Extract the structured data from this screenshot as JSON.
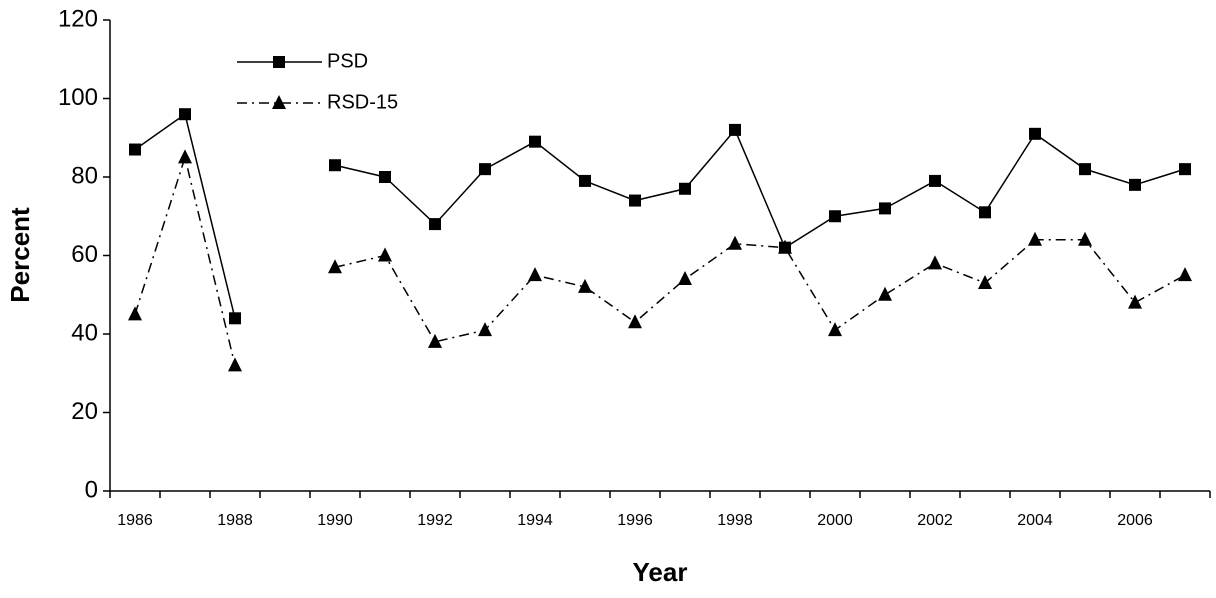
{
  "chart_data": {
    "type": "line",
    "x_label": "Year",
    "y_label": "Percent",
    "categories": [
      "1986",
      null,
      "1988",
      null,
      "1990",
      null,
      "1992",
      null,
      "1994",
      null,
      "1996",
      null,
      "1998",
      null,
      "2000",
      null,
      "2002",
      null,
      "2004",
      null,
      "2006",
      null
    ],
    "series": [
      {
        "name": "PSD",
        "color": "#000000",
        "dash": "solid",
        "marker": "square",
        "values": [
          87,
          96,
          44,
          null,
          83,
          80,
          68,
          82,
          89,
          79,
          74,
          77,
          92,
          62,
          70,
          72,
          79,
          71,
          91,
          82,
          78,
          82
        ]
      },
      {
        "name": "RSD-15",
        "color": "#000000",
        "dash": "dash-dot",
        "marker": "triangle",
        "values": [
          45,
          85,
          32,
          null,
          57,
          60,
          38,
          41,
          55,
          52,
          43,
          54,
          63,
          62,
          41,
          50,
          58,
          53,
          64,
          64,
          48,
          55
        ]
      }
    ],
    "ylim": [
      0,
      120
    ],
    "yticks": [
      0,
      20,
      40,
      60,
      80,
      100,
      120
    ],
    "grid": false,
    "legend": "upper-left"
  }
}
